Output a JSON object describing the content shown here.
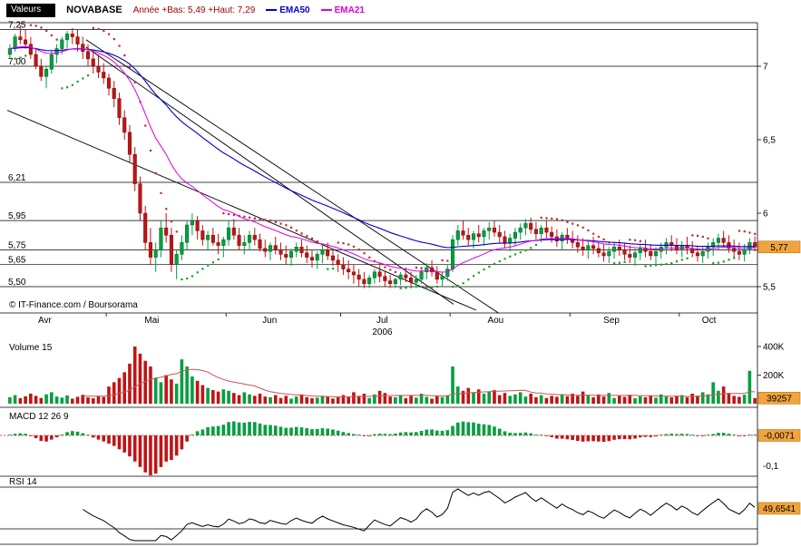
{
  "header": {
    "values_button": "Valeurs",
    "symbol": "NOVABASE",
    "range_label": "Année +Bas: 5,49 +Haut: 7,29",
    "ema50_label": "EMA50",
    "ema21_label": "EMA21"
  },
  "panels": {
    "volume_label": "Volume 15",
    "macd_label": "MACD 12 26 9",
    "rsi_label": "RSI 14"
  },
  "badges": {
    "price": "5,77",
    "volume": "39257",
    "macd": "-0,0071",
    "rsi": "49,6541"
  },
  "footer": {
    "copyright": "© IT-Finance.com / Boursorama"
  },
  "colors": {
    "up": "#00a040",
    "down": "#c01414",
    "up_stroke": "#006428",
    "down_stroke": "#7a0c0c",
    "ema50": "#0000cc",
    "ema21": "#e000e0",
    "sar_up": "#1e9e1e",
    "sar_down": "#b03232",
    "volume_ma": "#cc5555",
    "badge": "#f0a43c",
    "badge_border": "#b37a1e",
    "range_text": "#990000",
    "macd_zero": "#993333"
  },
  "axes": {
    "price_right": [
      {
        "label": "7",
        "value": 7
      },
      {
        "label": "6,5",
        "value": 6.5
      },
      {
        "label": "6",
        "value": 6
      },
      {
        "label": "5,5",
        "value": 5.5
      }
    ],
    "price_levels": [
      {
        "label": "7,25",
        "value": 7.25
      },
      {
        "label": "7,00",
        "value": 7.0
      },
      {
        "label": "6,21",
        "value": 6.21
      },
      {
        "label": "5,95",
        "value": 5.95
      },
      {
        "label": "5,75",
        "value": 5.75
      },
      {
        "label": "5,65",
        "value": 5.65
      },
      {
        "label": "5,50",
        "value": 5.5
      }
    ],
    "year": "2006",
    "volume_ticks": [
      {
        "label": "400K",
        "value": 400000
      },
      {
        "label": "200K",
        "value": 200000
      }
    ],
    "macd_tick": {
      "label": "-0,1",
      "value": -0.1
    }
  },
  "chart_data": {
    "type": "candlestick+volume+macd+rsi",
    "title": "NOVABASE",
    "year_low": 5.49,
    "year_high": 7.29,
    "last_price": 5.77,
    "last_volume": 39257,
    "last_macd": -0.0071,
    "last_rsi": 49.6541,
    "price_axis_range": [
      5.32,
      7.3
    ],
    "price_gridlines": [
      7.25,
      7.0,
      6.21,
      5.95,
      5.75,
      5.65,
      5.5
    ],
    "indicators": {
      "ema_overlays": [
        50,
        21
      ],
      "volume_ma": 15,
      "macd": [
        12,
        26,
        9
      ],
      "rsi": 14,
      "sar": true
    },
    "month_starts": [
      {
        "label": "Avr",
        "i": 0
      },
      {
        "label": "Mai",
        "i": 19
      },
      {
        "label": "Jun",
        "i": 42
      },
      {
        "label": "Jul",
        "i": 64
      },
      {
        "label": "Aou",
        "i": 85
      },
      {
        "label": "Sep",
        "i": 108
      },
      {
        "label": "Oct",
        "i": 129
      }
    ],
    "trendlines": [
      {
        "x1": 0.0,
        "p1": 6.7,
        "x2": 0.625,
        "p2": 5.34
      },
      {
        "x1": 0.105,
        "p1": 7.13,
        "x2": 0.595,
        "p2": 5.38
      },
      {
        "x1": 0.105,
        "p1": 7.18,
        "x2": 0.655,
        "p2": 5.32
      }
    ],
    "candles": [
      [
        7.08,
        7.15,
        7.05,
        7.12
      ],
      [
        7.12,
        7.22,
        7.1,
        7.2
      ],
      [
        7.2,
        7.28,
        7.15,
        7.18
      ],
      [
        7.18,
        7.25,
        7.12,
        7.15
      ],
      [
        7.15,
        7.2,
        7.05,
        7.08
      ],
      [
        7.08,
        7.12,
        6.98,
        7.0
      ],
      [
        7.0,
        7.05,
        6.9,
        6.93
      ],
      [
        6.93,
        7.0,
        6.85,
        6.98
      ],
      [
        6.98,
        7.1,
        6.95,
        7.08
      ],
      [
        7.08,
        7.15,
        7.02,
        7.12
      ],
      [
        7.12,
        7.2,
        7.08,
        7.18
      ],
      [
        7.18,
        7.24,
        7.12,
        7.22
      ],
      [
        7.22,
        7.26,
        7.15,
        7.2
      ],
      [
        7.2,
        7.25,
        7.1,
        7.15
      ],
      [
        7.15,
        7.2,
        7.05,
        7.1
      ],
      [
        7.1,
        7.15,
        7.0,
        7.05
      ],
      [
        7.05,
        7.1,
        6.95,
        7.0
      ],
      [
        7.0,
        7.08,
        6.92,
        6.96
      ],
      [
        6.96,
        7.02,
        6.88,
        6.92
      ],
      [
        6.92,
        6.95,
        6.8,
        6.85
      ],
      [
        6.85,
        6.9,
        6.72,
        6.78
      ],
      [
        6.78,
        6.82,
        6.6,
        6.65
      ],
      [
        6.65,
        6.7,
        6.5,
        6.55
      ],
      [
        6.55,
        6.6,
        6.35,
        6.4
      ],
      [
        6.4,
        6.45,
        6.15,
        6.2
      ],
      [
        6.2,
        6.25,
        5.95,
        6.0
      ],
      [
        6.0,
        6.05,
        5.75,
        5.8
      ],
      [
        5.8,
        5.9,
        5.65,
        5.7
      ],
      [
        5.7,
        5.8,
        5.6,
        5.75
      ],
      [
        5.75,
        5.95,
        5.7,
        5.9
      ],
      [
        5.9,
        6.0,
        5.8,
        5.85
      ],
      [
        5.85,
        5.9,
        5.6,
        5.65
      ],
      [
        5.65,
        5.75,
        5.55,
        5.72
      ],
      [
        5.72,
        5.85,
        5.68,
        5.8
      ],
      [
        5.8,
        5.95,
        5.75,
        5.92
      ],
      [
        5.92,
        6.0,
        5.85,
        5.95
      ],
      [
        5.95,
        5.98,
        5.82,
        5.88
      ],
      [
        5.88,
        5.92,
        5.78,
        5.82
      ],
      [
        5.82,
        5.88,
        5.75,
        5.85
      ],
      [
        5.85,
        5.9,
        5.78,
        5.8
      ],
      [
        5.8,
        5.86,
        5.72,
        5.78
      ],
      [
        5.78,
        5.84,
        5.7,
        5.82
      ],
      [
        5.82,
        5.95,
        5.78,
        5.9
      ],
      [
        5.9,
        5.96,
        5.82,
        5.85
      ],
      [
        5.85,
        5.9,
        5.75,
        5.78
      ],
      [
        5.78,
        5.85,
        5.72,
        5.8
      ],
      [
        5.8,
        5.88,
        5.75,
        5.85
      ],
      [
        5.85,
        5.9,
        5.78,
        5.82
      ],
      [
        5.82,
        5.86,
        5.74,
        5.76
      ],
      [
        5.76,
        5.82,
        5.7,
        5.74
      ],
      [
        5.74,
        5.8,
        5.68,
        5.78
      ],
      [
        5.78,
        5.84,
        5.72,
        5.75
      ],
      [
        5.75,
        5.8,
        5.68,
        5.72
      ],
      [
        5.72,
        5.78,
        5.65,
        5.7
      ],
      [
        5.7,
        5.76,
        5.64,
        5.74
      ],
      [
        5.74,
        5.8,
        5.7,
        5.77
      ],
      [
        5.77,
        5.82,
        5.7,
        5.73
      ],
      [
        5.73,
        5.78,
        5.66,
        5.7
      ],
      [
        5.7,
        5.75,
        5.63,
        5.68
      ],
      [
        5.68,
        5.74,
        5.62,
        5.72
      ],
      [
        5.72,
        5.78,
        5.66,
        5.75
      ],
      [
        5.75,
        5.8,
        5.68,
        5.71
      ],
      [
        5.71,
        5.76,
        5.64,
        5.68
      ],
      [
        5.68,
        5.72,
        5.6,
        5.65
      ],
      [
        5.65,
        5.7,
        5.58,
        5.62
      ],
      [
        5.62,
        5.68,
        5.55,
        5.6
      ],
      [
        5.6,
        5.65,
        5.52,
        5.58
      ],
      [
        5.58,
        5.62,
        5.5,
        5.55
      ],
      [
        5.55,
        5.6,
        5.49,
        5.52
      ],
      [
        5.52,
        5.58,
        5.49,
        5.56
      ],
      [
        5.56,
        5.62,
        5.52,
        5.6
      ],
      [
        5.6,
        5.64,
        5.53,
        5.57
      ],
      [
        5.57,
        5.61,
        5.5,
        5.54
      ],
      [
        5.54,
        5.58,
        5.49,
        5.52
      ],
      [
        5.52,
        5.56,
        5.49,
        5.55
      ],
      [
        5.55,
        5.6,
        5.51,
        5.58
      ],
      [
        5.58,
        5.63,
        5.53,
        5.56
      ],
      [
        5.56,
        5.6,
        5.5,
        5.53
      ],
      [
        5.53,
        5.58,
        5.49,
        5.55
      ],
      [
        5.55,
        5.62,
        5.52,
        5.6
      ],
      [
        5.6,
        5.66,
        5.55,
        5.63
      ],
      [
        5.63,
        5.68,
        5.57,
        5.6
      ],
      [
        5.6,
        5.64,
        5.52,
        5.55
      ],
      [
        5.55,
        5.6,
        5.5,
        5.57
      ],
      [
        5.57,
        5.65,
        5.54,
        5.62
      ],
      [
        5.62,
        5.85,
        5.6,
        5.82
      ],
      [
        5.82,
        5.92,
        5.78,
        5.88
      ],
      [
        5.88,
        5.95,
        5.82,
        5.85
      ],
      [
        5.85,
        5.9,
        5.78,
        5.82
      ],
      [
        5.82,
        5.88,
        5.76,
        5.86
      ],
      [
        5.86,
        5.92,
        5.8,
        5.84
      ],
      [
        5.84,
        5.9,
        5.78,
        5.88
      ],
      [
        5.88,
        5.94,
        5.82,
        5.9
      ],
      [
        5.9,
        5.95,
        5.84,
        5.87
      ],
      [
        5.87,
        5.92,
        5.8,
        5.84
      ],
      [
        5.84,
        5.88,
        5.76,
        5.8
      ],
      [
        5.8,
        5.86,
        5.74,
        5.83
      ],
      [
        5.83,
        5.9,
        5.78,
        5.87
      ],
      [
        5.87,
        5.93,
        5.82,
        5.9
      ],
      [
        5.9,
        5.96,
        5.85,
        5.93
      ],
      [
        5.93,
        5.97,
        5.86,
        5.89
      ],
      [
        5.89,
        5.94,
        5.82,
        5.86
      ],
      [
        5.86,
        5.92,
        5.8,
        5.9
      ],
      [
        5.9,
        5.95,
        5.83,
        5.87
      ],
      [
        5.87,
        5.91,
        5.8,
        5.84
      ],
      [
        5.84,
        5.89,
        5.77,
        5.81
      ],
      [
        5.81,
        5.87,
        5.75,
        5.85
      ],
      [
        5.85,
        5.9,
        5.79,
        5.82
      ],
      [
        5.82,
        5.88,
        5.76,
        5.8
      ],
      [
        5.8,
        5.85,
        5.73,
        5.77
      ],
      [
        5.77,
        5.83,
        5.71,
        5.75
      ],
      [
        5.75,
        5.81,
        5.69,
        5.78
      ],
      [
        5.78,
        5.84,
        5.72,
        5.76
      ],
      [
        5.76,
        5.8,
        5.7,
        5.73
      ],
      [
        5.73,
        5.79,
        5.67,
        5.71
      ],
      [
        5.71,
        5.77,
        5.66,
        5.74
      ],
      [
        5.74,
        5.8,
        5.69,
        5.77
      ],
      [
        5.77,
        5.82,
        5.71,
        5.75
      ],
      [
        5.75,
        5.8,
        5.68,
        5.72
      ],
      [
        5.72,
        5.78,
        5.66,
        5.7
      ],
      [
        5.7,
        5.76,
        5.64,
        5.73
      ],
      [
        5.73,
        5.79,
        5.68,
        5.76
      ],
      [
        5.76,
        5.82,
        5.7,
        5.74
      ],
      [
        5.74,
        5.79,
        5.68,
        5.71
      ],
      [
        5.71,
        5.77,
        5.65,
        5.74
      ],
      [
        5.74,
        5.8,
        5.69,
        5.77
      ],
      [
        5.77,
        5.83,
        5.72,
        5.8
      ],
      [
        5.8,
        5.85,
        5.74,
        5.78
      ],
      [
        5.78,
        5.83,
        5.72,
        5.75
      ],
      [
        5.75,
        5.81,
        5.7,
        5.78
      ],
      [
        5.78,
        5.84,
        5.72,
        5.76
      ],
      [
        5.76,
        5.81,
        5.7,
        5.73
      ],
      [
        5.73,
        5.78,
        5.67,
        5.71
      ],
      [
        5.71,
        5.77,
        5.66,
        5.74
      ],
      [
        5.74,
        5.8,
        5.69,
        5.77
      ],
      [
        5.77,
        5.83,
        5.71,
        5.8
      ],
      [
        5.8,
        5.86,
        5.75,
        5.83
      ],
      [
        5.83,
        5.88,
        5.77,
        5.8
      ],
      [
        5.8,
        5.85,
        5.73,
        5.76
      ],
      [
        5.76,
        5.82,
        5.7,
        5.74
      ],
      [
        5.74,
        5.8,
        5.68,
        5.72
      ],
      [
        5.72,
        5.79,
        5.67,
        5.75
      ],
      [
        5.75,
        5.83,
        5.72,
        5.8
      ],
      [
        5.8,
        5.84,
        5.74,
        5.77
      ]
    ],
    "volumes": [
      45000,
      60000,
      38000,
      52000,
      70000,
      55000,
      40000,
      65000,
      80000,
      50000,
      42000,
      58000,
      35000,
      48000,
      62000,
      44000,
      38000,
      55000,
      47000,
      120000,
      150000,
      180000,
      220000,
      280000,
      400000,
      350000,
      300000,
      260000,
      180000,
      150000,
      200000,
      170000,
      140000,
      310000,
      260000,
      190000,
      160000,
      130000,
      110000,
      95000,
      85000,
      100000,
      90000,
      75000,
      60000,
      80000,
      65000,
      55000,
      70000,
      50000,
      45000,
      60000,
      40000,
      55000,
      35000,
      50000,
      65000,
      45000,
      38000,
      42000,
      55000,
      48000,
      36000,
      44000,
      60000,
      45000,
      80000,
      55000,
      70000,
      40000,
      65000,
      90000,
      75000,
      50000,
      45000,
      60000,
      38000,
      55000,
      42000,
      70000,
      48000,
      35000,
      52000,
      46000,
      58000,
      260000,
      120000,
      90000,
      110000,
      80000,
      100000,
      70000,
      85000,
      95000,
      60000,
      75000,
      55000,
      65000,
      80000,
      50000,
      70000,
      45000,
      60000,
      40000,
      55000,
      48000,
      65000,
      52000,
      70000,
      55000,
      85000,
      60000,
      45000,
      65000,
      50000,
      75000,
      40000,
      55000,
      48000,
      62000,
      38000,
      52000,
      45000,
      58000,
      42000,
      65000,
      50000,
      44000,
      56000,
      60000,
      45000,
      70000,
      55000,
      80000,
      65000,
      150000,
      90000,
      120000,
      75000,
      55000,
      48000,
      62000,
      230000,
      39257
    ]
  }
}
